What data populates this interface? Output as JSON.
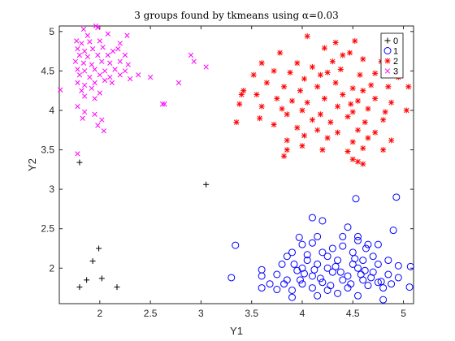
{
  "chart_data": {
    "type": "scatter",
    "title": "3 groups found by tkmeans using α=0.03",
    "xlabel": "Y1",
    "ylabel": "Y2",
    "xlim": [
      1.6,
      5.1
    ],
    "ylim": [
      1.55,
      5.07
    ],
    "xticks": [
      2,
      2.5,
      3,
      3.5,
      4,
      4.5,
      5
    ],
    "yticks": [
      2,
      2.5,
      3,
      3.5,
      4,
      4.5,
      5
    ],
    "grid": false,
    "legend_position": "top-right",
    "series": [
      {
        "name": "0",
        "marker": "plus",
        "color": "#000000",
        "points": [
          [
            1.8,
            3.34
          ],
          [
            3.05,
            3.06
          ],
          [
            1.99,
            2.25
          ],
          [
            1.93,
            2.09
          ],
          [
            1.87,
            1.85
          ],
          [
            2.02,
            1.87
          ],
          [
            1.8,
            1.76
          ],
          [
            2.17,
            1.76
          ]
        ]
      },
      {
        "name": "1",
        "marker": "circle",
        "color": "#0000ff",
        "points": [
          [
            3.34,
            2.29
          ],
          [
            4.53,
            2.88
          ],
          [
            4.93,
            2.9
          ],
          [
            4.1,
            2.64
          ],
          [
            4.2,
            2.6
          ],
          [
            4.45,
            2.52
          ],
          [
            4.9,
            2.48
          ],
          [
            3.97,
            2.39
          ],
          [
            4.55,
            2.4
          ],
          [
            4.75,
            2.3
          ],
          [
            4.1,
            2.32
          ],
          [
            4.55,
            2.35
          ],
          [
            4.63,
            2.25
          ],
          [
            4.3,
            2.25
          ],
          [
            3.9,
            2.2
          ],
          [
            4.0,
            2.3
          ],
          [
            4.2,
            2.2
          ],
          [
            4.4,
            2.28
          ],
          [
            3.85,
            2.15
          ],
          [
            4.05,
            2.1
          ],
          [
            4.25,
            2.15
          ],
          [
            4.5,
            2.2
          ],
          [
            4.7,
            2.15
          ],
          [
            4.85,
            2.1
          ],
          [
            3.8,
            2.05
          ],
          [
            4.0,
            2.0
          ],
          [
            4.15,
            2.05
          ],
          [
            4.35,
            2.1
          ],
          [
            4.6,
            2.1
          ],
          [
            4.75,
            2.05
          ],
          [
            4.95,
            2.03
          ],
          [
            3.6,
            1.98
          ],
          [
            3.75,
            1.92
          ],
          [
            3.95,
            1.97
          ],
          [
            4.1,
            1.9
          ],
          [
            4.3,
            1.95
          ],
          [
            4.45,
            1.9
          ],
          [
            4.55,
            2.0
          ],
          [
            4.7,
            1.95
          ],
          [
            4.85,
            1.92
          ],
          [
            5.07,
            2.02
          ],
          [
            3.6,
            1.9
          ],
          [
            3.85,
            1.85
          ],
          [
            4.0,
            1.8
          ],
          [
            4.2,
            1.82
          ],
          [
            4.4,
            1.85
          ],
          [
            4.6,
            1.85
          ],
          [
            4.75,
            1.82
          ],
          [
            4.95,
            1.88
          ],
          [
            3.6,
            1.75
          ],
          [
            3.75,
            1.73
          ],
          [
            3.9,
            1.72
          ],
          [
            4.1,
            1.75
          ],
          [
            4.25,
            1.72
          ],
          [
            4.45,
            1.75
          ],
          [
            4.65,
            1.78
          ],
          [
            4.8,
            1.75
          ],
          [
            5.06,
            1.76
          ],
          [
            3.9,
            1.63
          ],
          [
            4.15,
            1.65
          ],
          [
            4.35,
            1.68
          ],
          [
            4.55,
            1.65
          ],
          [
            4.8,
            1.6
          ],
          [
            3.3,
            1.88
          ],
          [
            4.25,
            2.0
          ],
          [
            4.5,
            2.05
          ],
          [
            4.62,
            1.97
          ],
          [
            4.05,
            2.17
          ],
          [
            4.33,
            2.02
          ],
          [
            4.18,
            1.87
          ],
          [
            3.82,
            1.8
          ],
          [
            4.48,
            1.8
          ],
          [
            4.68,
            1.88
          ],
          [
            3.98,
            1.85
          ],
          [
            4.28,
            1.78
          ],
          [
            4.88,
            1.8
          ],
          [
            4.4,
            2.4
          ],
          [
            3.68,
            1.8
          ],
          [
            4.12,
            1.98
          ],
          [
            4.58,
            1.92
          ],
          [
            4.78,
            1.83
          ],
          [
            4.02,
            1.93
          ],
          [
            4.38,
            1.95
          ],
          [
            4.52,
            2.12
          ],
          [
            4.15,
            2.4
          ],
          [
            3.92,
            2.05
          ],
          [
            4.65,
            2.3
          ]
        ]
      },
      {
        "name": "2",
        "marker": "star",
        "color": "#ff0000",
        "points": [
          [
            4.05,
            4.94
          ],
          [
            4.33,
            4.86
          ],
          [
            4.52,
            4.88
          ],
          [
            4.22,
            4.79
          ],
          [
            4.4,
            4.7
          ],
          [
            4.47,
            4.73
          ],
          [
            3.78,
            4.73
          ],
          [
            3.95,
            4.6
          ],
          [
            4.1,
            4.55
          ],
          [
            4.3,
            4.62
          ],
          [
            4.6,
            4.65
          ],
          [
            4.78,
            4.62
          ],
          [
            3.6,
            4.6
          ],
          [
            3.72,
            4.5
          ],
          [
            3.88,
            4.48
          ],
          [
            4.02,
            4.4
          ],
          [
            4.18,
            4.45
          ],
          [
            4.38,
            4.52
          ],
          [
            4.57,
            4.45
          ],
          [
            4.72,
            4.47
          ],
          [
            4.95,
            4.42
          ],
          [
            3.52,
            4.45
          ],
          [
            3.65,
            4.35
          ],
          [
            3.82,
            4.3
          ],
          [
            3.98,
            4.25
          ],
          [
            4.15,
            4.3
          ],
          [
            4.33,
            4.35
          ],
          [
            4.5,
            4.28
          ],
          [
            4.68,
            4.32
          ],
          [
            4.85,
            4.3
          ],
          [
            5.05,
            4.3
          ],
          [
            3.4,
            4.2
          ],
          [
            3.55,
            4.2
          ],
          [
            3.75,
            4.15
          ],
          [
            3.9,
            4.12
          ],
          [
            4.05,
            4.1
          ],
          [
            4.22,
            4.15
          ],
          [
            4.4,
            4.2
          ],
          [
            4.55,
            4.12
          ],
          [
            4.72,
            4.15
          ],
          [
            4.88,
            4.1
          ],
          [
            3.38,
            4.08
          ],
          [
            3.6,
            4.05
          ],
          [
            3.8,
            4.02
          ],
          [
            4.0,
            4.0
          ],
          [
            4.18,
            3.95
          ],
          [
            4.35,
            4.05
          ],
          [
            4.5,
            3.98
          ],
          [
            4.65,
            4.02
          ],
          [
            4.82,
            3.98
          ],
          [
            5.03,
            4.0
          ],
          [
            3.35,
            3.85
          ],
          [
            3.58,
            3.9
          ],
          [
            3.85,
            3.95
          ],
          [
            4.1,
            3.88
          ],
          [
            4.28,
            3.85
          ],
          [
            4.45,
            3.92
          ],
          [
            4.62,
            3.85
          ],
          [
            4.8,
            3.88
          ],
          [
            3.72,
            3.82
          ],
          [
            3.95,
            3.78
          ],
          [
            4.15,
            3.75
          ],
          [
            4.35,
            3.72
          ],
          [
            4.55,
            3.75
          ],
          [
            4.72,
            3.72
          ],
          [
            3.85,
            3.62
          ],
          [
            4.02,
            3.68
          ],
          [
            4.25,
            3.65
          ],
          [
            4.5,
            3.6
          ],
          [
            4.65,
            3.65
          ],
          [
            4.88,
            3.62
          ],
          [
            3.85,
            3.5
          ],
          [
            4.0,
            3.55
          ],
          [
            4.2,
            3.5
          ],
          [
            4.45,
            3.48
          ],
          [
            4.6,
            3.52
          ],
          [
            4.8,
            3.5
          ],
          [
            3.82,
            3.42
          ],
          [
            4.5,
            3.38
          ],
          [
            4.55,
            3.35
          ],
          [
            4.6,
            3.32
          ],
          [
            3.42,
            4.25
          ],
          [
            4.48,
            4.08
          ],
          [
            4.25,
            4.48
          ],
          [
            4.6,
            4.25
          ]
        ]
      },
      {
        "name": "3",
        "marker": "x",
        "color": "#ff00ff",
        "points": [
          [
            1.96,
            5.07
          ],
          [
            1.98,
            5.05
          ],
          [
            1.84,
            5.03
          ],
          [
            1.88,
            4.95
          ],
          [
            2.08,
            4.97
          ],
          [
            2.27,
            4.95
          ],
          [
            1.77,
            4.88
          ],
          [
            1.82,
            4.85
          ],
          [
            1.9,
            4.87
          ],
          [
            2.0,
            4.88
          ],
          [
            2.2,
            4.85
          ],
          [
            1.78,
            4.78
          ],
          [
            1.85,
            4.75
          ],
          [
            1.93,
            4.78
          ],
          [
            2.03,
            4.8
          ],
          [
            2.13,
            4.75
          ],
          [
            2.18,
            4.78
          ],
          [
            1.8,
            4.7
          ],
          [
            1.88,
            4.68
          ],
          [
            1.98,
            4.7
          ],
          [
            2.08,
            4.7
          ],
          [
            2.25,
            4.7
          ],
          [
            2.9,
            4.7
          ],
          [
            1.76,
            4.62
          ],
          [
            1.84,
            4.6
          ],
          [
            1.92,
            4.58
          ],
          [
            2.02,
            4.62
          ],
          [
            2.1,
            4.6
          ],
          [
            2.2,
            4.62
          ],
          [
            2.28,
            4.58
          ],
          [
            2.93,
            4.62
          ],
          [
            1.78,
            4.52
          ],
          [
            1.85,
            4.5
          ],
          [
            1.95,
            4.52
          ],
          [
            2.05,
            4.5
          ],
          [
            2.15,
            4.52
          ],
          [
            2.25,
            4.5
          ],
          [
            3.05,
            4.55
          ],
          [
            1.8,
            4.45
          ],
          [
            1.9,
            4.42
          ],
          [
            2.0,
            4.45
          ],
          [
            2.1,
            4.42
          ],
          [
            2.2,
            4.45
          ],
          [
            2.3,
            4.4
          ],
          [
            1.78,
            4.35
          ],
          [
            1.85,
            4.32
          ],
          [
            1.95,
            4.35
          ],
          [
            2.05,
            4.38
          ],
          [
            2.12,
            4.35
          ],
          [
            2.5,
            4.42
          ],
          [
            1.82,
            4.25
          ],
          [
            1.92,
            4.28
          ],
          [
            2.0,
            4.22
          ],
          [
            2.78,
            4.35
          ],
          [
            1.61,
            4.26
          ],
          [
            1.85,
            4.18
          ],
          [
            1.95,
            4.15
          ],
          [
            2.62,
            4.08
          ],
          [
            2.64,
            4.08
          ],
          [
            1.78,
            4.05
          ],
          [
            1.85,
            3.98
          ],
          [
            1.95,
            3.95
          ],
          [
            1.83,
            3.9
          ],
          [
            2.02,
            3.88
          ],
          [
            1.98,
            3.81
          ],
          [
            2.04,
            3.74
          ],
          [
            1.78,
            3.45
          ],
          [
            2.38,
            4.45
          ]
        ]
      }
    ]
  }
}
